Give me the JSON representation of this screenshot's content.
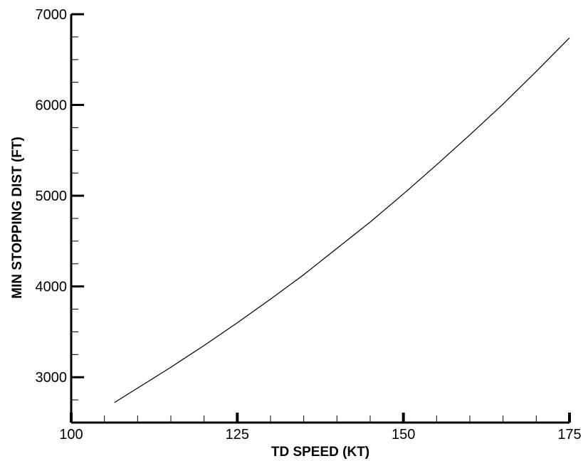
{
  "chart_data": {
    "type": "line",
    "title": "",
    "xlabel": "TD SPEED (KT)",
    "ylabel": "MIN STOPPING DIST (FT)",
    "xlim": [
      100,
      175
    ],
    "ylim": [
      2500,
      7000
    ],
    "x_ticks": [
      100,
      125,
      150,
      175
    ],
    "y_ticks": [
      3000,
      4000,
      5000,
      6000,
      7000
    ],
    "grid": false,
    "series": [
      {
        "x": [
          106.5,
          110,
          115,
          120,
          125,
          130,
          135,
          140,
          145,
          150,
          155,
          160,
          165,
          170,
          175
        ],
        "values": [
          2720,
          2880,
          3110,
          3350,
          3600,
          3860,
          4130,
          4420,
          4710,
          5020,
          5340,
          5670,
          6010,
          6370,
          6740
        ]
      }
    ]
  }
}
